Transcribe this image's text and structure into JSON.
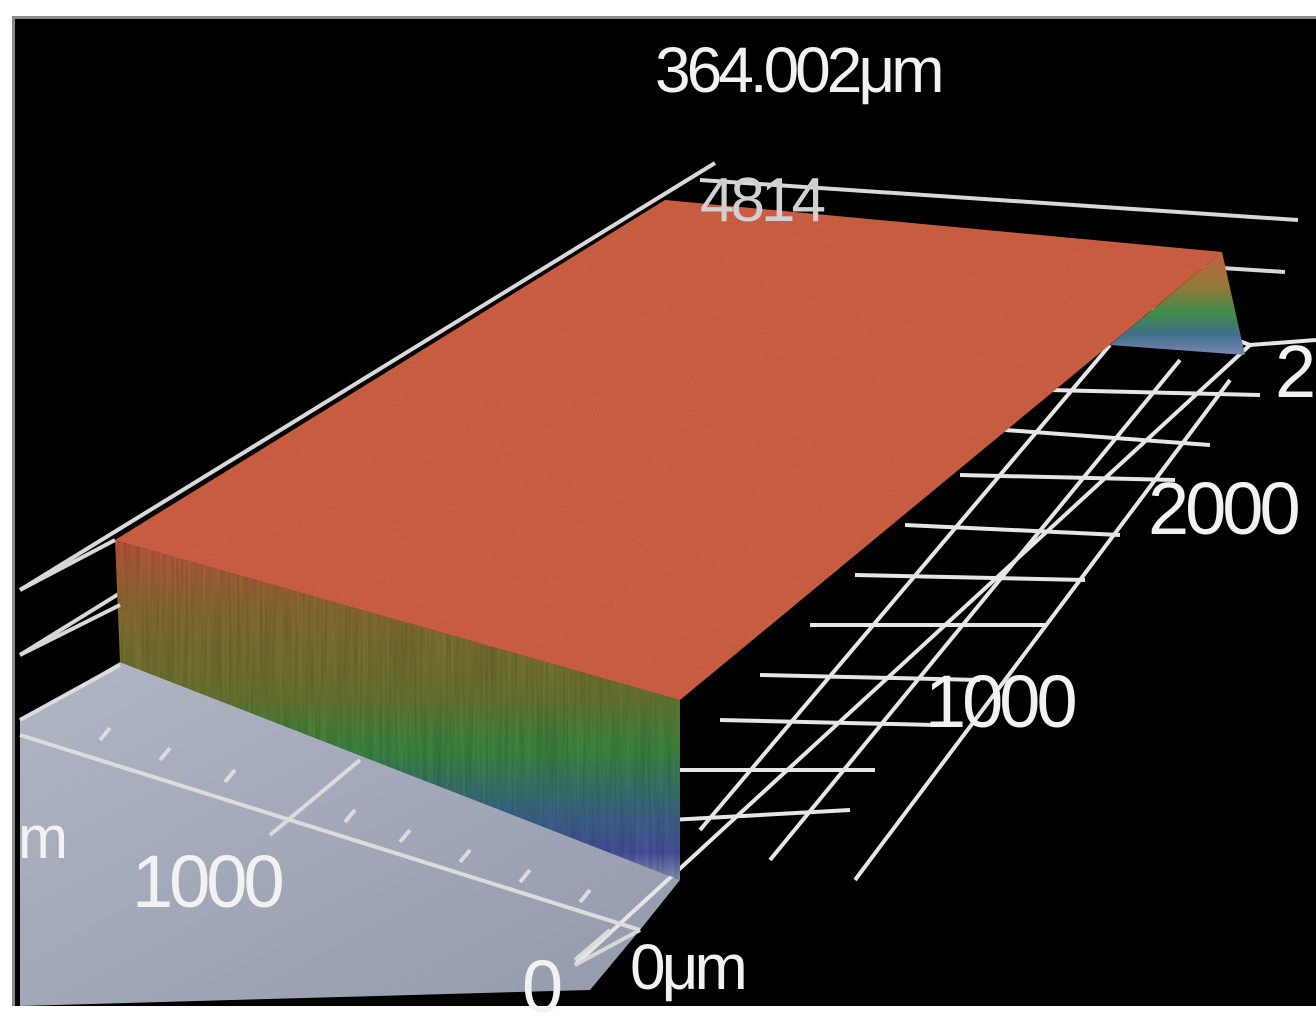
{
  "viewer": {
    "name": "3D surface profile viewer",
    "colors": {
      "background": "#000000",
      "frame": "#8a8a8a",
      "surface_top": "#d9664a",
      "grid": "#e6e6e6",
      "base_plane": "#a9b0c0",
      "label_text": "#f2f2f2"
    },
    "colormap": [
      "#d9664a",
      "#8a7a3c",
      "#4e8f3e",
      "#3f7f7a",
      "#4d5aa0",
      "#a9b0c0"
    ],
    "z_axis": {
      "max_label": "364.002μm",
      "top_tick_label": "4814"
    },
    "y_axis": {
      "tick_labels": [
        "1000",
        "2000",
        "2"
      ],
      "origin_label": "0μm"
    },
    "x_axis": {
      "unit_fragment": "m",
      "tick_labels": [
        "1000"
      ],
      "origin_label": "0"
    }
  }
}
